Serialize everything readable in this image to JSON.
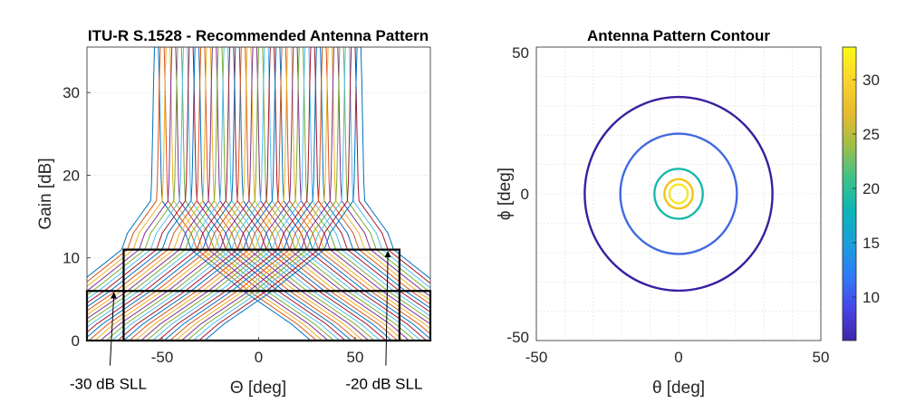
{
  "chart_data": [
    {
      "type": "line",
      "title": "ITU-R S.1528 - Recommended Antenna Pattern",
      "xlabel": "Θ [deg]",
      "ylabel": "Gain [dB]",
      "xlim": [
        -89,
        89
      ],
      "ylim": [
        0,
        35.5
      ],
      "xticks": [
        -50,
        0,
        50
      ],
      "yticks": [
        0,
        10,
        20,
        30
      ],
      "grid": true,
      "pattern": {
        "beam_centers": [
          -53,
          -50,
          -47,
          -44,
          -41,
          -38,
          -35,
          -32,
          -29,
          -26,
          -23,
          -20,
          -17,
          -14,
          -11,
          -8,
          -5,
          -2,
          1,
          4,
          7,
          10,
          13,
          16,
          19,
          22,
          25,
          28,
          31,
          34,
          37,
          40,
          43,
          46,
          49,
          52
        ],
        "peak_gain": 35.5,
        "main_lobe_halfwidth": 1.2,
        "plateau_level": 24,
        "plateau_halfwidth": 15,
        "near_sidelobe_level": 11,
        "far_sidelobe_level": 6,
        "edge_level": 0,
        "colors": [
          "#0072bd",
          "#d95319",
          "#edb120",
          "#7e2f8e",
          "#77ac30",
          "#4dbeee",
          "#a2142f"
        ]
      },
      "boxes": [
        {
          "label": "-20 dB SLL",
          "x": [
            -70,
            73
          ],
          "y": [
            0,
            11
          ]
        },
        {
          "label": "-30 dB SLL",
          "x": [
            -89,
            89
          ],
          "y": [
            0,
            6
          ]
        }
      ],
      "annotations": [
        {
          "text": "-30 dB SLL",
          "arrow_to": [
            -75,
            6
          ],
          "text_at": [
            -78,
            -5
          ]
        },
        {
          "text": "-20 dB SLL",
          "arrow_to": [
            67,
            11
          ],
          "text_at": [
            65,
            -5
          ]
        }
      ]
    },
    {
      "type": "contour",
      "title": "Antenna Pattern Contour",
      "xlabel": "θ [deg]",
      "ylabel": "ϕ [deg]",
      "xlim": [
        -50,
        50
      ],
      "ylim": [
        -50,
        50
      ],
      "xticks": [
        -50,
        0,
        50
      ],
      "yticks": [
        -50,
        0,
        50
      ],
      "grid": true,
      "contours": [
        {
          "level": 6,
          "radius": 33,
          "color": "#3b1fa0"
        },
        {
          "level": 11,
          "radius": 20.5,
          "color": "#4169e1"
        },
        {
          "level": 22,
          "radius": 8.5,
          "color": "#19b9a8"
        },
        {
          "level": 31,
          "radius": 5,
          "color": "#f2c416"
        },
        {
          "level": 33,
          "radius": 3.2,
          "color": "#f7e628"
        }
      ],
      "colorbar": {
        "range": [
          6,
          33
        ],
        "ticks": [
          10,
          15,
          20,
          25,
          30
        ],
        "colormap": [
          "#3e26a8",
          "#4745e8",
          "#2f7cf8",
          "#1a9fd9",
          "#0cb5b7",
          "#3ec387",
          "#a1bd48",
          "#e9ba2e",
          "#fad42d",
          "#f9fb14"
        ]
      }
    }
  ]
}
